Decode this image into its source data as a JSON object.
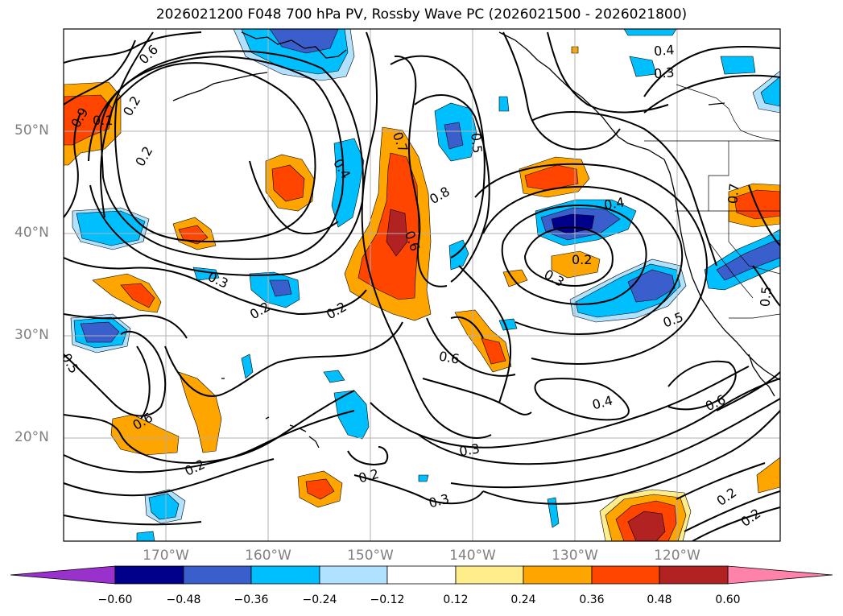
{
  "title": "2026021200 F048 700 hPa PV, Rossby Wave PC (2026021500 - 2026021800)",
  "lat_labels": [
    "50°N",
    "40°N",
    "30°N",
    "20°N"
  ],
  "lon_labels": [
    "170°W",
    "160°W",
    "150°W",
    "140°W",
    "130°W",
    "120°W"
  ],
  "colorbar": {
    "ticks": [
      "−0.60",
      "−0.48",
      "−0.36",
      "−0.24",
      "−0.12",
      "0.12",
      "0.24",
      "0.36",
      "0.48",
      "0.60"
    ],
    "colors": [
      "#9932cc",
      "#00008b",
      "#3a5fcd",
      "#00bfff",
      "#b0e2ff",
      "#ffffff",
      "#ffec8b",
      "#ffa500",
      "#ff4500",
      "#b22222",
      "#ff82ab"
    ]
  },
  "contour_labels": [
    "0.6",
    "0.9",
    "0.1",
    "0.2",
    "0.2",
    "0.3",
    "0.2",
    "0.5",
    "0.6",
    "0.2",
    "0.2",
    "0.4",
    "0.7",
    "0.8",
    "0.6",
    "0.5",
    "0.6",
    "0.4",
    "0.2",
    "0.3",
    "0.4",
    "0.3",
    "0.5",
    "0.7",
    "0.5",
    "0.6",
    "0.3",
    "0.2",
    "0.3",
    "0.4",
    "0.2",
    "0.2"
  ]
}
